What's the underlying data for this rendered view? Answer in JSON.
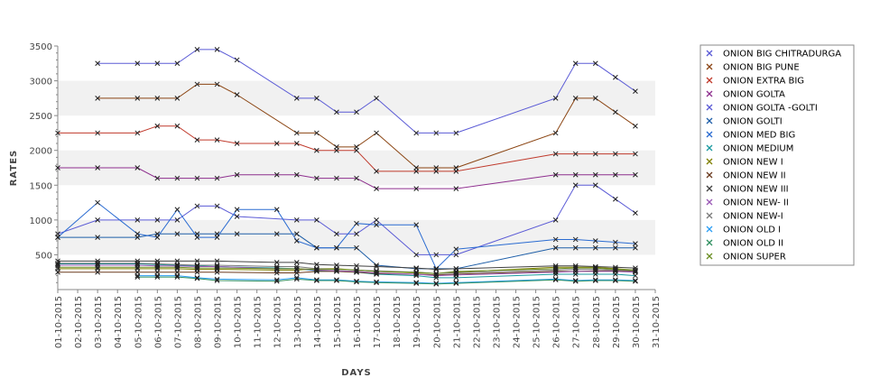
{
  "chart_data": {
    "type": "line",
    "xlabel": "DAYS",
    "ylabel": "RATES",
    "ylim": [
      0,
      3500
    ],
    "yticks": [
      500,
      1000,
      1500,
      2000,
      2500,
      3000,
      3500
    ],
    "x": [
      "01-10-2015",
      "02-10-2015",
      "03-10-2015",
      "04-10-2015",
      "05-10-2015",
      "06-10-2015",
      "07-10-2015",
      "08-10-2015",
      "09-10-2015",
      "10-10-2015",
      "11-10-2015",
      "12-10-2015",
      "13-10-2015",
      "14-10-2015",
      "15-10-2015",
      "16-10-2015",
      "17-10-2015",
      "18-10-2015",
      "19-10-2015",
      "20-10-2015",
      "21-10-2015",
      "22-10-2015",
      "23-10-2015",
      "24-10-2015",
      "25-10-2015",
      "26-10-2015",
      "27-10-2015",
      "28-10-2015",
      "29-10-2015",
      "30-10-2015",
      "31-10-2015"
    ],
    "grid": "alternating horizontal bands",
    "legend_position": "right",
    "series": [
      {
        "name": "ONION BIG CHITRADURGA",
        "color": "#5b5bd6",
        "values": [
          null,
          null,
          3250,
          null,
          3250,
          3250,
          3250,
          3450,
          3450,
          3300,
          null,
          null,
          2750,
          2750,
          2550,
          2550,
          2750,
          null,
          2250,
          2250,
          2250,
          null,
          null,
          null,
          null,
          2750,
          3250,
          3250,
          3050,
          2850,
          null
        ]
      },
      {
        "name": "ONION BIG PUNE",
        "color": "#8b4513",
        "values": [
          null,
          null,
          2750,
          null,
          2750,
          2750,
          2750,
          2950,
          2950,
          2800,
          null,
          null,
          2250,
          2250,
          2050,
          2050,
          2250,
          null,
          1750,
          1750,
          1750,
          null,
          null,
          null,
          null,
          2250,
          2750,
          2750,
          2550,
          2350,
          null
        ]
      },
      {
        "name": "ONION EXTRA BIG",
        "color": "#c0392b",
        "values": [
          2250,
          null,
          2250,
          null,
          2250,
          2350,
          2350,
          2150,
          2150,
          2100,
          null,
          2100,
          2100,
          2000,
          2000,
          2000,
          1700,
          null,
          1700,
          1700,
          1700,
          null,
          null,
          null,
          null,
          1950,
          1950,
          1950,
          1950,
          1950,
          null
        ]
      },
      {
        "name": "ONION GOLTA",
        "color": "#8e2f8e",
        "values": [
          1750,
          null,
          1750,
          null,
          1750,
          1600,
          1600,
          1600,
          1600,
          1650,
          null,
          1650,
          1650,
          1600,
          1600,
          1600,
          1450,
          null,
          1450,
          null,
          1450,
          null,
          null,
          null,
          null,
          1650,
          1650,
          1650,
          1650,
          1650,
          null
        ]
      },
      {
        "name": "ONION GOLTA -GOLTI",
        "color": "#5b5bd6",
        "values": [
          800,
          null,
          1000,
          null,
          1000,
          1000,
          1000,
          1200,
          1200,
          1050,
          null,
          null,
          1000,
          1000,
          800,
          800,
          1000,
          null,
          500,
          500,
          500,
          null,
          null,
          null,
          null,
          1000,
          1500,
          1500,
          1300,
          1100,
          null
        ]
      },
      {
        "name": "ONION GOLTI",
        "color": "#1f5fa8",
        "values": [
          750,
          null,
          750,
          null,
          750,
          800,
          800,
          800,
          800,
          800,
          null,
          800,
          800,
          600,
          600,
          600,
          350,
          null,
          300,
          300,
          300,
          null,
          null,
          null,
          null,
          600,
          600,
          600,
          600,
          600,
          null
        ]
      },
      {
        "name": "ONION MED BIG",
        "color": "#2a6bd1",
        "values": [
          750,
          null,
          1250,
          null,
          800,
          750,
          1150,
          750,
          750,
          1150,
          null,
          1150,
          700,
          600,
          600,
          950,
          930,
          null,
          930,
          300,
          580,
          null,
          null,
          null,
          null,
          720,
          720,
          700,
          680,
          660,
          null
        ]
      },
      {
        "name": "ONION MEDIUM",
        "color": "#1a9aa0",
        "values": [
          370,
          null,
          370,
          null,
          370,
          360,
          350,
          340,
          330,
          null,
          null,
          310,
          300,
          270,
          270,
          250,
          220,
          null,
          200,
          170,
          170,
          null,
          null,
          null,
          null,
          220,
          220,
          220,
          220,
          200,
          null
        ]
      },
      {
        "name": "ONION NEW I",
        "color": "#808000",
        "values": [
          300,
          null,
          300,
          null,
          300,
          300,
          300,
          290,
          290,
          null,
          null,
          280,
          280,
          300,
          300,
          280,
          260,
          null,
          240,
          230,
          250,
          null,
          null,
          null,
          null,
          320,
          320,
          320,
          300,
          280,
          null
        ]
      },
      {
        "name": "ONION NEW II",
        "color": "#6b3a1f",
        "values": [
          250,
          null,
          250,
          null,
          250,
          250,
          250,
          250,
          250,
          null,
          null,
          240,
          240,
          260,
          260,
          250,
          230,
          null,
          220,
          210,
          220,
          null,
          null,
          null,
          null,
          260,
          260,
          270,
          270,
          260,
          null
        ]
      },
      {
        "name": "ONION NEW III",
        "color": "#404040",
        "values": [
          410,
          null,
          410,
          null,
          410,
          410,
          410,
          410,
          410,
          null,
          null,
          390,
          390,
          360,
          350,
          340,
          330,
          null,
          310,
          290,
          300,
          null,
          null,
          null,
          null,
          340,
          340,
          330,
          320,
          310,
          null
        ]
      },
      {
        "name": "ONION NEW- II",
        "color": "#9b59b6",
        "values": [
          350,
          null,
          350,
          null,
          350,
          340,
          340,
          330,
          330,
          null,
          null,
          300,
          300,
          280,
          270,
          260,
          240,
          null,
          220,
          200,
          210,
          null,
          null,
          null,
          null,
          250,
          260,
          260,
          260,
          250,
          null
        ]
      },
      {
        "name": "ONION NEW-I",
        "color": "#7a7a7a",
        "values": [
          380,
          null,
          380,
          null,
          380,
          370,
          360,
          350,
          350,
          null,
          null,
          330,
          330,
          300,
          290,
          280,
          270,
          null,
          250,
          230,
          240,
          null,
          null,
          null,
          null,
          280,
          290,
          290,
          280,
          270,
          null
        ]
      },
      {
        "name": "ONION OLD I",
        "color": "#2a9df4",
        "values": [
          null,
          null,
          null,
          null,
          200,
          200,
          200,
          170,
          150,
          null,
          null,
          140,
          170,
          140,
          140,
          120,
          110,
          null,
          100,
          90,
          100,
          null,
          null,
          null,
          null,
          150,
          130,
          140,
          140,
          130,
          null
        ]
      },
      {
        "name": "ONION OLD II",
        "color": "#2f8f5f",
        "values": [
          null,
          null,
          null,
          null,
          180,
          180,
          180,
          160,
          130,
          null,
          null,
          120,
          150,
          130,
          130,
          110,
          100,
          null,
          90,
          80,
          90,
          null,
          null,
          null,
          null,
          140,
          120,
          130,
          130,
          120,
          null
        ]
      },
      {
        "name": "ONION SUPER",
        "color": "#6b8e23",
        "values": [
          320,
          null,
          320,
          null,
          320,
          320,
          320,
          310,
          310,
          null,
          null,
          300,
          300,
          290,
          290,
          280,
          260,
          null,
          250,
          230,
          260,
          null,
          null,
          null,
          null,
          300,
          310,
          310,
          290,
          280,
          null
        ]
      }
    ]
  }
}
